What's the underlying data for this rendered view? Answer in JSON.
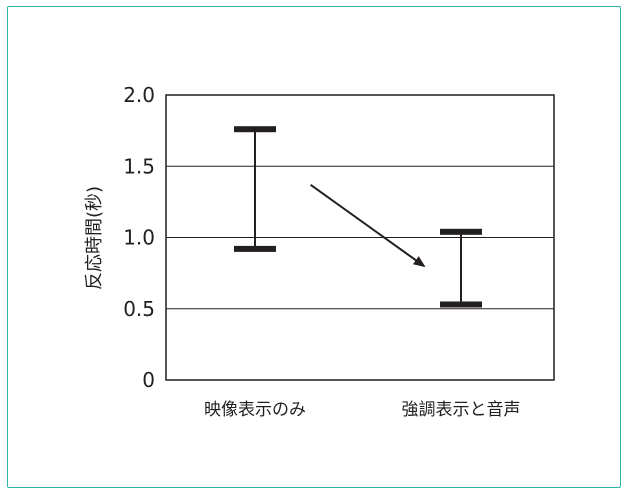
{
  "chart_data": {
    "type": "errorbar",
    "ylabel": "反応時間(秒)",
    "xlabel": "",
    "title": "",
    "ylim": [
      0,
      2.0
    ],
    "yticks": [
      "0",
      "0.5",
      "1.0",
      "1.5",
      "2.0"
    ],
    "grid": "horizontal",
    "categories": [
      "映像表示のみ",
      "強調表示と音声"
    ],
    "ranges": [
      {
        "category": "映像表示のみ",
        "low": 0.92,
        "high": 1.76
      },
      {
        "category": "強調表示と音声",
        "low": 0.53,
        "high": 1.04
      }
    ],
    "arrow": {
      "from": {
        "category_index": 0.27,
        "y": 1.37
      },
      "to": {
        "category_index": 0.82,
        "y": 0.8
      }
    },
    "colors": {
      "frame": "#2fb3a6",
      "ink": "#231f20",
      "grid": "#231f20"
    }
  }
}
